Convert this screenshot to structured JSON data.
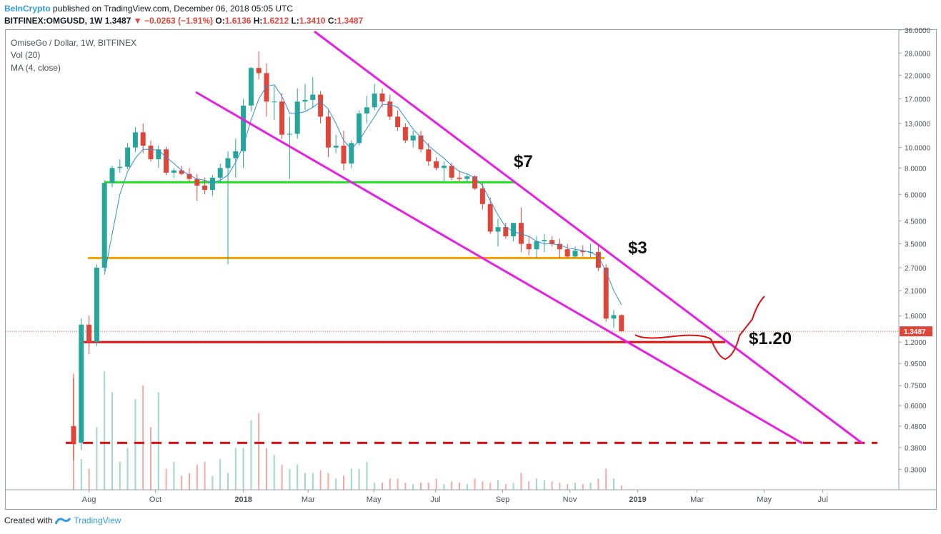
{
  "header": {
    "publisher": "BeInCrypto",
    "published_text": "published on TradingView.com, December 06, 2018 05:05 UTC",
    "symbol": "BITFINEX:OMGUSD, 1W",
    "last": "1.3487",
    "change": "−0.0263 (−1.91%)",
    "o_label": "O:",
    "o_value": "1.6136",
    "h_label": "H:",
    "h_value": "1.6212",
    "l_label": "L:",
    "l_value": "1.3410",
    "c_label": "C:",
    "c_value": "1.3487"
  },
  "legend": {
    "title": "OmiseGo / Dollar, 1W, BITFINEX",
    "vol": "Vol (20)",
    "ma": "MA (4, close)"
  },
  "footer": {
    "created_with": "Created with",
    "brand": "TradingView"
  },
  "colors": {
    "up": "#26a69a",
    "down": "#e0453a",
    "trendline": "#e61ee6",
    "support_green": "#22dd22",
    "support_orange": "#f5a000",
    "support_red": "#dd1111",
    "ma": "#2f8fd6"
  },
  "chart_data": {
    "type": "candlestick",
    "scale": "log",
    "ylim": [
      0.24,
      36
    ],
    "y_ticks": [
      "36.0000",
      "28.0000",
      "22.0000",
      "17.0000",
      "13.0000",
      "10.0000",
      "8.0000",
      "6.0000",
      "4.5000",
      "3.5000",
      "2.7000",
      "2.1000",
      "1.6000",
      "1.2000",
      "0.9500",
      "0.7500",
      "0.6000",
      "0.4800",
      "0.3800",
      "0.3000"
    ],
    "x_ticks": [
      "Aug",
      "Oct",
      "2018",
      "Mar",
      "May",
      "Jul",
      "Sep",
      "Nov",
      "2019",
      "Mar",
      "May",
      "Jul"
    ],
    "last_price": "1.3487",
    "candles": [
      [
        0.48,
        0.85,
        0.33,
        0.4
      ],
      [
        0.4,
        1.55,
        0.37,
        1.45
      ],
      [
        1.45,
        1.6,
        1.05,
        1.2
      ],
      [
        1.2,
        2.8,
        1.15,
        2.7
      ],
      [
        2.7,
        7.0,
        2.6,
        6.8
      ],
      [
        6.8,
        8.2,
        6.5,
        8.0
      ],
      [
        8.0,
        8.8,
        7.6,
        8.1
      ],
      [
        8.1,
        10.5,
        7.9,
        10.0
      ],
      [
        10.0,
        12.5,
        9.5,
        11.8
      ],
      [
        11.8,
        13.0,
        9.4,
        10.2
      ],
      [
        10.2,
        10.8,
        8.6,
        8.8
      ],
      [
        8.8,
        10.2,
        8.0,
        9.8
      ],
      [
        9.8,
        10.1,
        7.4,
        7.6
      ],
      [
        7.6,
        8.0,
        7.2,
        7.8
      ],
      [
        7.8,
        8.2,
        7.4,
        7.5
      ],
      [
        7.5,
        8.0,
        6.9,
        7.1
      ],
      [
        7.1,
        7.5,
        5.6,
        6.6
      ],
      [
        6.6,
        7.2,
        6.0,
        6.3
      ],
      [
        6.3,
        7.4,
        5.9,
        7.2
      ],
      [
        7.2,
        8.4,
        6.8,
        8.0
      ],
      [
        8.0,
        9.6,
        2.8,
        8.9
      ],
      [
        8.9,
        11.0,
        7.2,
        9.6
      ],
      [
        9.6,
        17.0,
        8.0,
        15.8
      ],
      [
        15.8,
        24.0,
        14.8,
        23.8
      ],
      [
        23.8,
        28.5,
        21.0,
        22.5
      ],
      [
        22.5,
        25.0,
        14.0,
        16.5
      ],
      [
        16.5,
        19.5,
        13.5,
        16.5
      ],
      [
        16.5,
        18.0,
        11.0,
        11.5
      ],
      [
        11.5,
        14.0,
        7.1,
        11.6
      ],
      [
        11.6,
        19.0,
        11.0,
        16.5
      ],
      [
        16.5,
        20.0,
        15.0,
        16.8
      ],
      [
        16.8,
        21.5,
        15.5,
        17.8
      ],
      [
        17.8,
        18.5,
        13.0,
        14.0
      ],
      [
        14.0,
        15.0,
        9.0,
        10.0
      ],
      [
        10.0,
        11.5,
        9.4,
        10.2
      ],
      [
        10.2,
        12.0,
        7.8,
        8.4
      ],
      [
        8.4,
        10.8,
        8.0,
        10.5
      ],
      [
        10.5,
        15.0,
        10.2,
        14.5
      ],
      [
        14.5,
        17.5,
        13.0,
        15.5
      ],
      [
        15.5,
        20.0,
        15.0,
        18.0
      ],
      [
        18.0,
        19.0,
        15.5,
        16.5
      ],
      [
        16.5,
        17.8,
        13.5,
        14.0
      ],
      [
        14.0,
        15.0,
        12.0,
        12.5
      ],
      [
        12.5,
        13.0,
        10.5,
        10.8
      ],
      [
        10.8,
        12.0,
        10.0,
        11.4
      ],
      [
        11.4,
        12.0,
        9.5,
        9.8
      ],
      [
        9.8,
        10.5,
        8.2,
        8.6
      ],
      [
        8.6,
        9.0,
        7.8,
        8.0
      ],
      [
        8.0,
        8.6,
        6.9,
        8.2
      ],
      [
        8.2,
        8.5,
        7.0,
        7.2
      ],
      [
        7.2,
        7.8,
        6.9,
        7.1
      ],
      [
        7.1,
        7.5,
        6.8,
        7.3
      ],
      [
        7.3,
        7.4,
        6.3,
        6.4
      ],
      [
        6.4,
        6.8,
        5.1,
        5.4
      ],
      [
        5.4,
        5.8,
        3.9,
        4.0
      ],
      [
        4.0,
        4.6,
        3.4,
        4.2
      ],
      [
        4.2,
        4.4,
        3.7,
        3.8
      ],
      [
        3.8,
        4.4,
        3.6,
        4.4
      ],
      [
        4.4,
        5.2,
        3.2,
        3.5
      ],
      [
        3.5,
        3.8,
        3.1,
        3.3
      ],
      [
        3.3,
        3.8,
        3.0,
        3.6
      ],
      [
        3.6,
        3.9,
        3.2,
        3.65
      ],
      [
        3.65,
        3.8,
        3.4,
        3.5
      ],
      [
        3.5,
        3.7,
        3.0,
        3.3
      ],
      [
        3.3,
        3.5,
        3.0,
        3.05
      ],
      [
        3.05,
        3.4,
        3.0,
        3.25
      ],
      [
        3.25,
        3.45,
        3.05,
        3.2
      ],
      [
        3.2,
        3.5,
        3.0,
        3.2
      ],
      [
        3.2,
        3.4,
        2.6,
        2.7
      ],
      [
        2.7,
        2.8,
        1.5,
        1.55
      ],
      [
        1.55,
        1.7,
        1.4,
        1.61
      ],
      [
        1.61,
        1.62,
        1.34,
        1.35
      ]
    ],
    "volume": [
      0.8,
      0.22,
      0.15,
      0.45,
      0.85,
      0.7,
      0.2,
      0.3,
      0.65,
      0.75,
      0.45,
      0.7,
      0.15,
      0.2,
      0.1,
      0.12,
      0.18,
      0.2,
      0.1,
      0.22,
      0.12,
      0.3,
      0.3,
      0.5,
      0.55,
      0.3,
      0.25,
      0.18,
      0.15,
      0.18,
      0.12,
      0.12,
      0.14,
      0.12,
      0.08,
      0.1,
      0.15,
      0.15,
      0.2,
      0.05,
      0.05,
      0.08,
      0.08,
      0.05,
      0.04,
      0.05,
      0.05,
      0.08,
      0.04,
      0.06,
      0.05,
      0.04,
      0.08,
      0.06,
      0.05,
      0.07,
      0.04,
      0.05,
      0.12,
      0.06,
      0.08,
      0.07,
      0.06,
      0.05,
      0.04,
      0.05,
      0.04,
      0.05,
      0.08,
      0.15,
      0.08,
      0.03
    ],
    "ma_line": [
      [
        4,
        2.5
      ],
      [
        5,
        3.9
      ],
      [
        6,
        6.0
      ],
      [
        7,
        7.7
      ],
      [
        8,
        8.9
      ],
      [
        9,
        9.8
      ],
      [
        10,
        9.8
      ],
      [
        11,
        9.7
      ],
      [
        12,
        9.0
      ],
      [
        13,
        8.4
      ],
      [
        14,
        7.8
      ],
      [
        15,
        7.4
      ],
      [
        16,
        7.1
      ],
      [
        17,
        7.0
      ],
      [
        18,
        6.8
      ],
      [
        19,
        7.0
      ],
      [
        20,
        7.4
      ],
      [
        21,
        8.5
      ],
      [
        22,
        10.2
      ],
      [
        23,
        13.5
      ],
      [
        24,
        17.0
      ],
      [
        25,
        19.5
      ],
      [
        26,
        19.8
      ],
      [
        27,
        17.5
      ],
      [
        28,
        14.5
      ],
      [
        29,
        14.5
      ],
      [
        30,
        14.8
      ],
      [
        31,
        15.5
      ],
      [
        32,
        16.5
      ],
      [
        33,
        15.2
      ],
      [
        34,
        13.0
      ],
      [
        35,
        10.8
      ],
      [
        36,
        9.8
      ],
      [
        37,
        10.8
      ],
      [
        38,
        12.3
      ],
      [
        39,
        14.0
      ],
      [
        40,
        16.0
      ],
      [
        41,
        16.0
      ],
      [
        42,
        15.5
      ],
      [
        43,
        13.8
      ],
      [
        44,
        12.2
      ],
      [
        45,
        11.2
      ],
      [
        46,
        10.2
      ],
      [
        47,
        9.5
      ],
      [
        48,
        8.9
      ],
      [
        49,
        8.2
      ],
      [
        50,
        7.7
      ],
      [
        51,
        7.5
      ],
      [
        52,
        7.2
      ],
      [
        53,
        6.6
      ],
      [
        54,
        5.6
      ],
      [
        55,
        4.8
      ],
      [
        56,
        4.2
      ],
      [
        57,
        4.0
      ],
      [
        58,
        3.9
      ],
      [
        59,
        3.8
      ],
      [
        60,
        3.6
      ],
      [
        61,
        3.5
      ],
      [
        62,
        3.5
      ],
      [
        63,
        3.45
      ],
      [
        64,
        3.35
      ],
      [
        65,
        3.3
      ],
      [
        66,
        3.25
      ],
      [
        67,
        3.2
      ],
      [
        68,
        3.05
      ],
      [
        69,
        2.6
      ],
      [
        70,
        2.1
      ],
      [
        71,
        1.8
      ]
    ]
  },
  "annotations": {
    "label_7": "$7",
    "label_3": "$3",
    "label_120": "$1.20"
  }
}
